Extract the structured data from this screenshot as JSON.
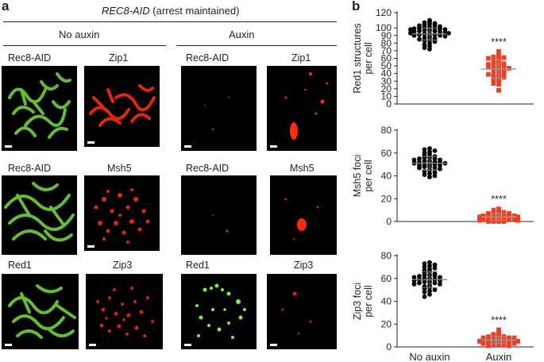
{
  "figure": {
    "panel_a_letter": "a",
    "panel_b_letter": "b",
    "title_italic": "REC8-AID",
    "title_rest": " (arrest maintained)",
    "conditions": [
      "No auxin",
      "Auxin"
    ],
    "rows": [
      {
        "labels": [
          "Rec8-AID",
          "Zip1",
          "Rec8-AID",
          "Zip1"
        ]
      },
      {
        "labels": [
          "Rec8-AID",
          "Msh5",
          "Rec8-AID",
          "Msh5"
        ]
      },
      {
        "labels": [
          "Red1",
          "Zip3",
          "Red1",
          "Zip3"
        ]
      }
    ],
    "colors": {
      "green": "#6fd23a",
      "red": "#ff2a10",
      "black_dots": "#000000",
      "red_squares": "#ee3e23"
    }
  },
  "chart_data": [
    {
      "type": "scatter",
      "ylabel_lines": [
        "Red1 structures",
        "per cell"
      ],
      "yticks": [
        "0",
        "10",
        "20",
        "30",
        "40",
        "50",
        "60",
        "70",
        "80",
        "90",
        "100",
        "120"
      ],
      "ylim": [
        0,
        120
      ],
      "significance": "****",
      "series": [
        {
          "category": "No auxin",
          "marker": "circle",
          "mean": 92,
          "sd": 8,
          "values": [
            110,
            108,
            107,
            106,
            105,
            104,
            104,
            103,
            102,
            101,
            101,
            100,
            100,
            99,
            99,
            98,
            98,
            97,
            97,
            96,
            96,
            95,
            95,
            94,
            94,
            93,
            93,
            92,
            92,
            91,
            91,
            90,
            90,
            89,
            88,
            87,
            86,
            85,
            84,
            83,
            82,
            80,
            78,
            76,
            74,
            72
          ]
        },
        {
          "category": "Auxin",
          "marker": "square",
          "mean": 46,
          "sd": 12,
          "values": [
            69,
            65,
            63,
            62,
            61,
            60,
            58,
            57,
            55,
            54,
            53,
            52,
            51,
            50,
            50,
            48,
            47,
            46,
            45,
            44,
            42,
            41,
            40,
            39,
            37,
            36,
            35,
            33,
            31,
            28,
            27,
            26,
            18
          ]
        }
      ]
    },
    {
      "type": "scatter",
      "ylabel_lines": [
        "Msh5 foci",
        "per cell"
      ],
      "yticks": [
        "0",
        "20",
        "40",
        "60",
        "80"
      ],
      "ylim": [
        0,
        80
      ],
      "significance": "****",
      "series": [
        {
          "category": "No auxin",
          "marker": "circle",
          "mean": 51,
          "sd": 6,
          "values": [
            64,
            63,
            62,
            61,
            60,
            59,
            58,
            57,
            56,
            56,
            55,
            55,
            54,
            54,
            53,
            53,
            52,
            52,
            52,
            51,
            51,
            50,
            50,
            50,
            49,
            49,
            48,
            48,
            47,
            47,
            46,
            45,
            44,
            43,
            42,
            41,
            40,
            39
          ]
        },
        {
          "category": "Auxin",
          "marker": "square",
          "mean": 4,
          "sd": 3,
          "values": [
            11,
            10,
            9,
            8,
            8,
            7,
            7,
            6,
            6,
            6,
            5,
            5,
            5,
            5,
            4,
            4,
            4,
            4,
            3,
            3,
            3,
            3,
            2,
            2,
            2,
            2,
            1,
            1,
            1,
            0,
            0,
            0,
            0
          ]
        }
      ]
    },
    {
      "type": "scatter",
      "ylabel_lines": [
        "Zip3 foci",
        "per cell"
      ],
      "yticks": [
        "0",
        "20",
        "40",
        "60",
        "80"
      ],
      "ylim": [
        0,
        80
      ],
      "xticks": [
        "No auxin",
        "Auxin"
      ],
      "significance": "****",
      "series": [
        {
          "category": "No auxin",
          "marker": "circle",
          "mean": 59,
          "sd": 7,
          "values": [
            74,
            73,
            72,
            71,
            70,
            69,
            68,
            67,
            66,
            65,
            64,
            63,
            63,
            62,
            62,
            61,
            61,
            60,
            60,
            59,
            59,
            58,
            58,
            57,
            57,
            56,
            56,
            55,
            55,
            54,
            53,
            52,
            51,
            50,
            49,
            48,
            46,
            44
          ]
        },
        {
          "category": "Auxin",
          "marker": "square",
          "mean": 6,
          "sd": 3,
          "values": [
            15,
            12,
            11,
            10,
            10,
            9,
            9,
            8,
            8,
            8,
            7,
            7,
            7,
            6,
            6,
            6,
            6,
            5,
            5,
            5,
            5,
            4,
            4,
            4,
            4,
            3,
            3,
            3,
            2,
            2,
            2,
            1,
            1
          ]
        }
      ]
    }
  ]
}
